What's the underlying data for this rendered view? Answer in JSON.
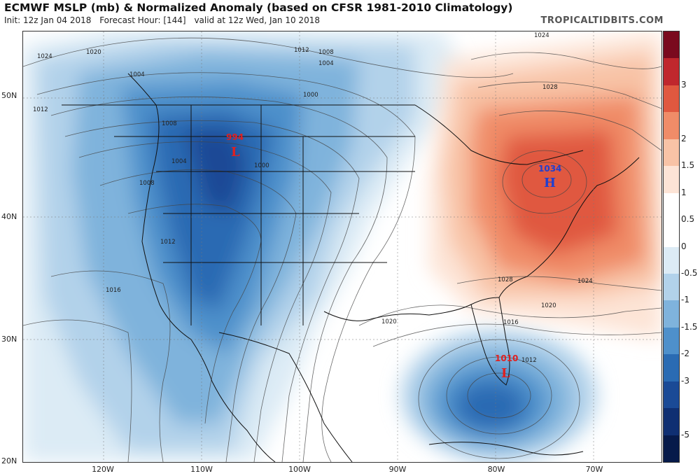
{
  "header": {
    "title": "ECMWF MSLP (mb) & Normalized Anomaly (based on CFSR 1981-2010 Climatology)",
    "init": "Init: 12z Jan 04 2018",
    "forecast_hour": "Forecast Hour: [144]",
    "valid": "valid at 12z Wed, Jan 10 2018",
    "brand": "TROPICALTIDBITS.COM"
  },
  "axes": {
    "lat_labels": [
      "50N",
      "40N",
      "30N",
      "20N"
    ],
    "lon_labels": [
      "120W",
      "110W",
      "100W",
      "90W",
      "80W",
      "70W"
    ]
  },
  "colorbar": {
    "labels": [
      "3",
      "2",
      "1.5",
      "1",
      "0.5",
      "0",
      "-0.5",
      "-1",
      "-1.5",
      "-2",
      "-3",
      "-5"
    ],
    "colors": [
      "#7a0a1e",
      "#c0272d",
      "#e0583f",
      "#f08c68",
      "#f8c3a6",
      "#fde4d6",
      "#ffffff",
      "#ffffff",
      "#dcebf5",
      "#b2d2ea",
      "#7fb3dc",
      "#4e90cb",
      "#2a6bb3",
      "#1a4a96",
      "#0f2f72",
      "#061a4a"
    ]
  },
  "pressure_centers": [
    {
      "type": "L",
      "value": "994",
      "color": "#e02020"
    },
    {
      "type": "H",
      "value": "1034",
      "color": "#1f3fd0"
    },
    {
      "type": "L",
      "value": "1010",
      "color": "#e02020"
    }
  ],
  "isobar_labels": [
    "1024",
    "1020",
    "1004",
    "1012",
    "1008",
    "1004",
    "1000",
    "1012",
    "1008",
    "1004",
    "1000",
    "1008",
    "1012",
    "1016",
    "1020",
    "1016",
    "1012",
    "1024",
    "1028",
    "1028",
    "1024",
    "1020"
  ]
}
